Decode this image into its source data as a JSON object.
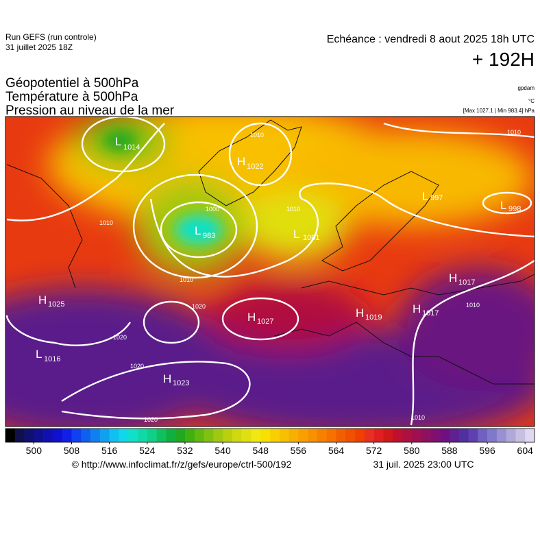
{
  "header": {
    "run": "Run GEFS (run controle)",
    "run_date": "31 juillet 2025 18Z",
    "valid": "Echéance : vendredi 8 aout 2025 18h UTC",
    "lead": "+ 192H"
  },
  "fields": [
    "Géopotentiel à 500hPa",
    "Température à 500hPa",
    "Pression au niveau de la mer"
  ],
  "units": {
    "geopotential": "gpdam",
    "temperature": "°C",
    "pressure": "[Max 1027.1 | Min 983.4] hPa"
  },
  "centers": [
    {
      "letter": "L",
      "value": "1014"
    },
    {
      "letter": "H",
      "value": "1022"
    },
    {
      "letter": "L",
      "value": "983"
    },
    {
      "letter": "L",
      "value": "1001"
    },
    {
      "letter": "L",
      "value": "997"
    },
    {
      "letter": "L",
      "value": "998"
    },
    {
      "letter": "H",
      "value": "1017"
    },
    {
      "letter": "H",
      "value": "1025"
    },
    {
      "letter": "H",
      "value": "1027"
    },
    {
      "letter": "H",
      "value": "1019"
    },
    {
      "letter": "H",
      "value": "1017"
    },
    {
      "letter": "L",
      "value": "1016"
    },
    {
      "letter": "H",
      "value": "1023"
    }
  ],
  "isobar_labels": [
    "1010",
    "1010",
    "1000",
    "1010",
    "1010",
    "1020",
    "1020",
    "1020",
    "1020",
    "1010",
    "1010",
    "1010"
  ],
  "colorbar": {
    "min": 494,
    "max": 606,
    "ticks": [
      500,
      508,
      516,
      524,
      532,
      540,
      548,
      556,
      564,
      572,
      580,
      588,
      596,
      604
    ],
    "colors": [
      "#000000",
      "#10104a",
      "#101070",
      "#101090",
      "#1010b0",
      "#1010d0",
      "#1020e8",
      "#1040f0",
      "#1060f0",
      "#1080f0",
      "#10a0f0",
      "#10c0f0",
      "#10d8e8",
      "#10e0c8",
      "#10d8a8",
      "#10d088",
      "#10c060",
      "#10b040",
      "#20a820",
      "#40b010",
      "#60b810",
      "#80c010",
      "#a0c810",
      "#b8d010",
      "#d0d810",
      "#e0e010",
      "#f0e810",
      "#f8e000",
      "#f8d000",
      "#f8c000",
      "#f8b000",
      "#f8a000",
      "#f89000",
      "#f88000",
      "#f87000",
      "#f06000",
      "#f05000",
      "#f04000",
      "#e83020",
      "#e02020",
      "#d01818",
      "#c01030",
      "#b01040",
      "#a01050",
      "#901060",
      "#801070",
      "#701080",
      "#602090",
      "#5030a0",
      "#6040b0",
      "#7060c0",
      "#8078c8",
      "#9890d0",
      "#b0a8d8",
      "#c8c0e0",
      "#e0d8f0"
    ]
  },
  "footer": {
    "source": "© http://www.infoclimat.fr/z/gefs/europe/ctrl-500/192",
    "issued": "31 juil. 2025 23:00 UTC"
  }
}
